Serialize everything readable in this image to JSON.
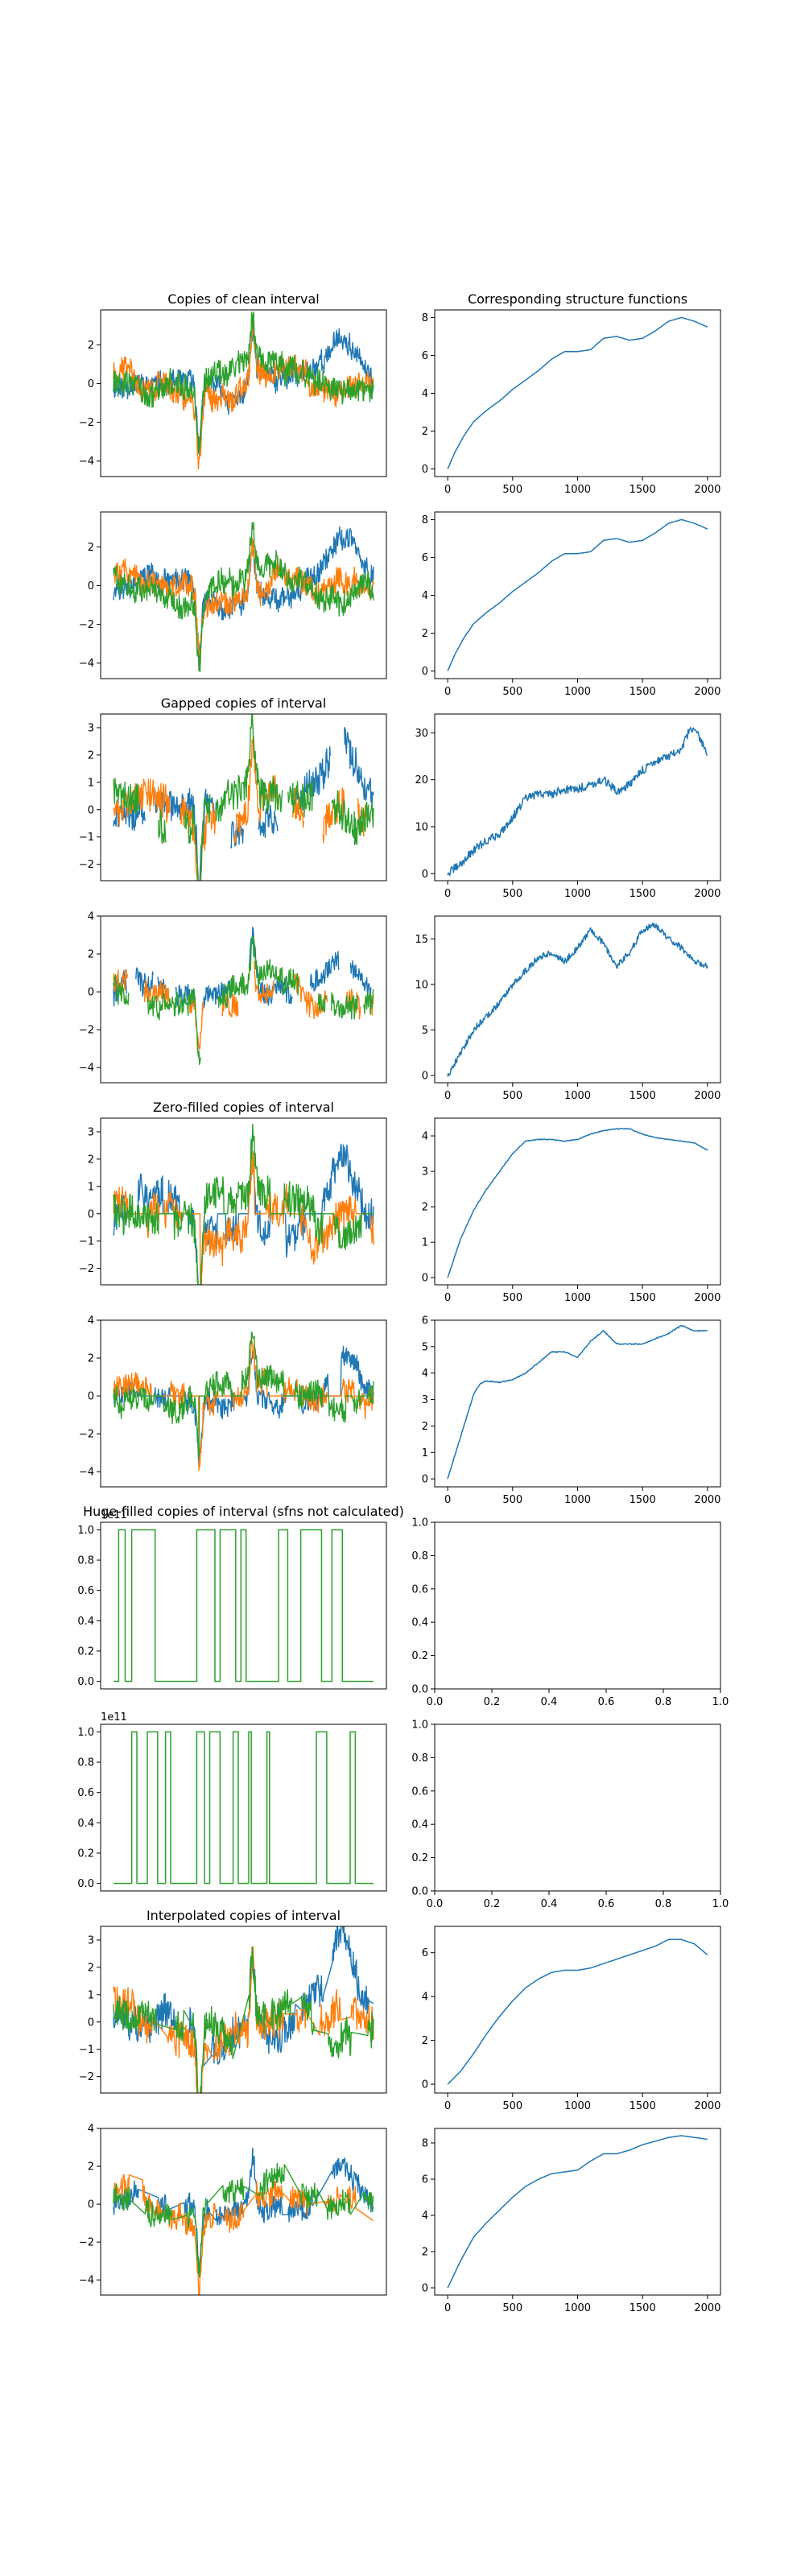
{
  "chart_data": {
    "type": "line",
    "colors": {
      "series_1": "#1f77b4",
      "series_2": "#ff7f0e",
      "series_3": "#2ca02c",
      "frame": "#000000"
    },
    "panels": [
      {
        "id": "clean-1",
        "row": 0,
        "col": 0,
        "title": "Copies of clean interval",
        "kind": "timeseries",
        "variant": "clean",
        "seed": 11,
        "ylim": [
          -4.8,
          3.8
        ],
        "yticks": [
          -4,
          -2,
          0,
          2
        ],
        "ytick_labels": [
          "−4",
          "−2",
          "0",
          "2"
        ]
      },
      {
        "id": "clean-sf-1",
        "row": 0,
        "col": 1,
        "title": "Corresponding structure functions",
        "kind": "sf",
        "seed": 101,
        "xlim": [
          -100,
          2100
        ],
        "ylim": [
          -0.4,
          8.4
        ],
        "xticks": [
          0,
          500,
          1000,
          1500,
          2000
        ],
        "xtick_labels": [
          "0",
          "500",
          "1000",
          "1500",
          "2000"
        ],
        "yticks": [
          0,
          2,
          4,
          6,
          8
        ],
        "ytick_labels": [
          "0",
          "2",
          "4",
          "6",
          "8"
        ],
        "curve": {
          "x": [
            0,
            50,
            120,
            200,
            300,
            400,
            500,
            600,
            700,
            800,
            900,
            1000,
            1100,
            1200,
            1300,
            1400,
            1500,
            1600,
            1700,
            1800,
            1900,
            2000
          ],
          "y": [
            0,
            0.8,
            1.7,
            2.5,
            3.1,
            3.6,
            4.2,
            4.7,
            5.2,
            5.8,
            6.2,
            6.2,
            6.3,
            6.9,
            7.0,
            6.8,
            6.9,
            7.3,
            7.8,
            8.0,
            7.8,
            7.5
          ]
        },
        "noise": 0
      },
      {
        "id": "clean-2",
        "row": 1,
        "col": 0,
        "title": "",
        "kind": "timeseries",
        "variant": "clean",
        "seed": 12,
        "ylim": [
          -4.8,
          3.8
        ],
        "yticks": [
          -4,
          -2,
          0,
          2
        ],
        "ytick_labels": [
          "−4",
          "−2",
          "0",
          "2"
        ]
      },
      {
        "id": "clean-sf-2",
        "row": 1,
        "col": 1,
        "title": "",
        "kind": "sf",
        "seed": 102,
        "xlim": [
          -100,
          2100
        ],
        "ylim": [
          -0.4,
          8.4
        ],
        "xticks": [
          0,
          500,
          1000,
          1500,
          2000
        ],
        "xtick_labels": [
          "0",
          "500",
          "1000",
          "1500",
          "2000"
        ],
        "yticks": [
          0,
          2,
          4,
          6,
          8
        ],
        "ytick_labels": [
          "0",
          "2",
          "4",
          "6",
          "8"
        ],
        "curve": {
          "x": [
            0,
            50,
            120,
            200,
            300,
            400,
            500,
            600,
            700,
            800,
            900,
            1000,
            1100,
            1200,
            1300,
            1400,
            1500,
            1600,
            1700,
            1800,
            1900,
            2000
          ],
          "y": [
            0,
            0.8,
            1.7,
            2.5,
            3.1,
            3.6,
            4.2,
            4.7,
            5.2,
            5.8,
            6.2,
            6.2,
            6.3,
            6.9,
            7.0,
            6.8,
            6.9,
            7.3,
            7.8,
            8.0,
            7.8,
            7.5
          ]
        },
        "noise": 0
      },
      {
        "id": "gapped-1",
        "row": 2,
        "col": 0,
        "title": "Gapped copies of interval",
        "kind": "timeseries",
        "variant": "gapped",
        "seed": 21,
        "ylim": [
          -2.6,
          3.5
        ],
        "yticks": [
          -2,
          -1,
          0,
          1,
          2,
          3
        ],
        "ytick_labels": [
          "−2",
          "−1",
          "0",
          "1",
          "2",
          "3"
        ]
      },
      {
        "id": "gapped-sf-1",
        "row": 2,
        "col": 1,
        "title": "",
        "kind": "sf",
        "seed": 201,
        "xlim": [
          -100,
          2100
        ],
        "ylim": [
          -1.5,
          34
        ],
        "xticks": [
          0,
          500,
          1000,
          1500,
          2000
        ],
        "xtick_labels": [
          "0",
          "500",
          "1000",
          "1500",
          "2000"
        ],
        "yticks": [
          0,
          10,
          20,
          30
        ],
        "ytick_labels": [
          "0",
          "10",
          "20",
          "30"
        ],
        "curve": {
          "x": [
            0,
            100,
            200,
            300,
            400,
            500,
            600,
            700,
            800,
            900,
            1000,
            1100,
            1200,
            1300,
            1400,
            1500,
            1600,
            1700,
            1800,
            1850,
            1900,
            1950,
            2000
          ],
          "y": [
            0,
            2,
            5,
            7,
            8.5,
            12,
            16,
            17,
            17,
            18,
            18,
            19,
            20,
            17.5,
            19,
            22,
            24,
            25,
            26,
            30,
            31,
            28,
            26
          ]
        },
        "noise": 0.9
      },
      {
        "id": "gapped-2",
        "row": 3,
        "col": 0,
        "title": "",
        "kind": "timeseries",
        "variant": "gapped",
        "seed": 22,
        "ylim": [
          -4.8,
          4
        ],
        "yticks": [
          -4,
          -2,
          0,
          2,
          4
        ],
        "ytick_labels": [
          "−4",
          "−2",
          "0",
          "2",
          "4"
        ]
      },
      {
        "id": "gapped-sf-2",
        "row": 3,
        "col": 1,
        "title": "",
        "kind": "sf",
        "seed": 202,
        "xlim": [
          -100,
          2100
        ],
        "ylim": [
          -0.8,
          17.5
        ],
        "xticks": [
          0,
          500,
          1000,
          1500,
          2000
        ],
        "xtick_labels": [
          "0",
          "500",
          "1000",
          "1500",
          "2000"
        ],
        "yticks": [
          0,
          5,
          10,
          15
        ],
        "ytick_labels": [
          "0",
          "5",
          "10",
          "15"
        ],
        "curve": {
          "x": [
            0,
            100,
            200,
            300,
            400,
            500,
            600,
            700,
            800,
            900,
            1000,
            1100,
            1200,
            1300,
            1400,
            1500,
            1600,
            1700,
            1800,
            1900,
            2000
          ],
          "y": [
            0,
            2.5,
            5,
            6.5,
            8,
            10,
            11.5,
            13,
            13.5,
            12.5,
            14,
            16,
            14.5,
            12,
            13.5,
            16,
            16.5,
            15,
            14,
            12.5,
            12
          ]
        },
        "noise": 0.35
      },
      {
        "id": "zero-1",
        "row": 4,
        "col": 0,
        "title": "Zero-filled copies of interval",
        "kind": "timeseries",
        "variant": "zero",
        "seed": 31,
        "ylim": [
          -2.6,
          3.5
        ],
        "yticks": [
          -2,
          -1,
          0,
          1,
          2,
          3
        ],
        "ytick_labels": [
          "−2",
          "−1",
          "0",
          "1",
          "2",
          "3"
        ]
      },
      {
        "id": "zero-sf-1",
        "row": 4,
        "col": 1,
        "title": "",
        "kind": "sf",
        "seed": 301,
        "xlim": [
          -100,
          2100
        ],
        "ylim": [
          -0.2,
          4.5
        ],
        "xticks": [
          0,
          500,
          1000,
          1500,
          2000
        ],
        "xtick_labels": [
          "0",
          "500",
          "1000",
          "1500",
          "2000"
        ],
        "yticks": [
          0,
          1,
          2,
          3,
          4
        ],
        "ytick_labels": [
          "0",
          "1",
          "2",
          "3",
          "4"
        ],
        "curve": {
          "x": [
            0,
            100,
            200,
            300,
            400,
            500,
            600,
            700,
            800,
            900,
            1000,
            1100,
            1200,
            1300,
            1400,
            1500,
            1600,
            1700,
            1800,
            1900,
            2000
          ],
          "y": [
            0,
            1.1,
            1.9,
            2.5,
            3.0,
            3.5,
            3.85,
            3.9,
            3.9,
            3.85,
            3.9,
            4.05,
            4.15,
            4.2,
            4.2,
            4.05,
            3.95,
            3.9,
            3.85,
            3.8,
            3.6
          ]
        },
        "noise": 0.01
      },
      {
        "id": "zero-2",
        "row": 5,
        "col": 0,
        "title": "",
        "kind": "timeseries",
        "variant": "zero",
        "seed": 32,
        "ylim": [
          -4.8,
          4
        ],
        "yticks": [
          -4,
          -2,
          0,
          2,
          4
        ],
        "ytick_labels": [
          "−4",
          "−2",
          "0",
          "2",
          "4"
        ]
      },
      {
        "id": "zero-sf-2",
        "row": 5,
        "col": 1,
        "title": "",
        "kind": "sf",
        "seed": 302,
        "xlim": [
          -100,
          2100
        ],
        "ylim": [
          -0.3,
          6
        ],
        "xticks": [
          0,
          500,
          1000,
          1500,
          2000
        ],
        "xtick_labels": [
          "0",
          "500",
          "1000",
          "1500",
          "2000"
        ],
        "yticks": [
          0,
          1,
          2,
          3,
          4,
          5,
          6
        ],
        "ytick_labels": [
          "0",
          "1",
          "2",
          "3",
          "4",
          "5",
          "6"
        ],
        "curve": {
          "x": [
            0,
            100,
            200,
            250,
            300,
            400,
            500,
            600,
            700,
            800,
            900,
            1000,
            1100,
            1200,
            1300,
            1400,
            1500,
            1600,
            1700,
            1800,
            1900,
            2000
          ],
          "y": [
            0,
            1.6,
            3.2,
            3.6,
            3.7,
            3.65,
            3.75,
            4.0,
            4.4,
            4.8,
            4.8,
            4.6,
            5.2,
            5.6,
            5.1,
            5.1,
            5.1,
            5.3,
            5.5,
            5.8,
            5.6,
            5.6
          ]
        },
        "noise": 0.02
      },
      {
        "id": "huge-1",
        "row": 6,
        "col": 0,
        "title": "Huge-filled copies of interval (sfns not calculated)",
        "kind": "binary",
        "seed": 41,
        "ylim": [
          -0.05,
          1.05
        ],
        "yticks": [
          0,
          0.2,
          0.4,
          0.6,
          0.8,
          1.0
        ],
        "ytick_labels": [
          "0.0",
          "0.2",
          "0.4",
          "0.6",
          "0.8",
          "1.0"
        ],
        "offset_text": "1e11",
        "intervals": [
          [
            0.02,
            0.045
          ],
          [
            0.07,
            0.16
          ],
          [
            0.32,
            0.39
          ],
          [
            0.41,
            0.47
          ],
          [
            0.49,
            0.51
          ],
          [
            0.635,
            0.67
          ],
          [
            0.72,
            0.8
          ],
          [
            0.84,
            0.88
          ]
        ]
      },
      {
        "id": "huge-empty-1",
        "row": 6,
        "col": 1,
        "title": "",
        "kind": "empty",
        "xlim": [
          0,
          1
        ],
        "ylim": [
          0,
          1
        ],
        "xticks": [
          0,
          0.2,
          0.4,
          0.6,
          0.8,
          1.0
        ],
        "xtick_labels": [
          "0.0",
          "0.2",
          "0.4",
          "0.6",
          "0.8",
          "1.0"
        ],
        "yticks": [
          0,
          0.2,
          0.4,
          0.6,
          0.8,
          1.0
        ],
        "ytick_labels": [
          "0.0",
          "0.2",
          "0.4",
          "0.6",
          "0.8",
          "1.0"
        ]
      },
      {
        "id": "huge-2",
        "row": 7,
        "col": 0,
        "title": "",
        "kind": "binary",
        "seed": 42,
        "ylim": [
          -0.05,
          1.05
        ],
        "yticks": [
          0,
          0.2,
          0.4,
          0.6,
          0.8,
          1.0
        ],
        "ytick_labels": [
          "0.0",
          "0.2",
          "0.4",
          "0.6",
          "0.8",
          "1.0"
        ],
        "offset_text": "1e11",
        "intervals": [
          [
            0.07,
            0.09
          ],
          [
            0.13,
            0.17
          ],
          [
            0.2,
            0.22
          ],
          [
            0.32,
            0.35
          ],
          [
            0.37,
            0.41
          ],
          [
            0.46,
            0.48
          ],
          [
            0.52,
            0.53
          ],
          [
            0.59,
            0.6
          ],
          [
            0.78,
            0.82
          ],
          [
            0.91,
            0.93
          ]
        ]
      },
      {
        "id": "huge-empty-2",
        "row": 7,
        "col": 1,
        "title": "",
        "kind": "empty",
        "xlim": [
          0,
          1
        ],
        "ylim": [
          0,
          1
        ],
        "xticks": [
          0,
          0.2,
          0.4,
          0.6,
          0.8,
          1.0
        ],
        "xtick_labels": [
          "0.0",
          "0.2",
          "0.4",
          "0.6",
          "0.8",
          "1.0"
        ],
        "yticks": [
          0,
          0.2,
          0.4,
          0.6,
          0.8,
          1.0
        ],
        "ytick_labels": [
          "0.0",
          "0.2",
          "0.4",
          "0.6",
          "0.8",
          "1.0"
        ]
      },
      {
        "id": "interp-1",
        "row": 8,
        "col": 0,
        "title": "Interpolated copies of interval",
        "kind": "timeseries",
        "variant": "interp",
        "seed": 51,
        "ylim": [
          -2.6,
          3.5
        ],
        "yticks": [
          -2,
          -1,
          0,
          1,
          2,
          3
        ],
        "ytick_labels": [
          "−2",
          "−1",
          "0",
          "1",
          "2",
          "3"
        ]
      },
      {
        "id": "interp-sf-1",
        "row": 8,
        "col": 1,
        "title": "",
        "kind": "sf",
        "seed": 501,
        "xlim": [
          -100,
          2100
        ],
        "ylim": [
          -0.4,
          7.2
        ],
        "xticks": [
          0,
          500,
          1000,
          1500,
          2000
        ],
        "xtick_labels": [
          "0",
          "500",
          "1000",
          "1500",
          "2000"
        ],
        "yticks": [
          0,
          2,
          4,
          6
        ],
        "ytick_labels": [
          "0",
          "2",
          "4",
          "6"
        ],
        "curve": {
          "x": [
            0,
            100,
            200,
            300,
            400,
            500,
            600,
            700,
            800,
            900,
            1000,
            1100,
            1200,
            1300,
            1400,
            1500,
            1600,
            1700,
            1800,
            1900,
            2000
          ],
          "y": [
            0,
            0.6,
            1.4,
            2.3,
            3.1,
            3.8,
            4.4,
            4.8,
            5.1,
            5.2,
            5.2,
            5.3,
            5.5,
            5.7,
            5.9,
            6.1,
            6.3,
            6.6,
            6.6,
            6.4,
            5.9
          ]
        },
        "noise": 0
      },
      {
        "id": "interp-2",
        "row": 9,
        "col": 0,
        "title": "",
        "kind": "timeseries",
        "variant": "interp",
        "seed": 52,
        "ylim": [
          -4.8,
          4
        ],
        "yticks": [
          -4,
          -2,
          0,
          2,
          4
        ],
        "ytick_labels": [
          "−4",
          "−2",
          "0",
          "2",
          "4"
        ]
      },
      {
        "id": "interp-sf-2",
        "row": 9,
        "col": 1,
        "title": "",
        "kind": "sf",
        "seed": 502,
        "xlim": [
          -100,
          2100
        ],
        "ylim": [
          -0.4,
          8.8
        ],
        "xticks": [
          0,
          500,
          1000,
          1500,
          2000
        ],
        "xtick_labels": [
          "0",
          "500",
          "1000",
          "1500",
          "2000"
        ],
        "yticks": [
          0,
          2,
          4,
          6,
          8
        ],
        "ytick_labels": [
          "0",
          "2",
          "4",
          "6",
          "8"
        ],
        "curve": {
          "x": [
            0,
            100,
            200,
            300,
            400,
            500,
            600,
            700,
            800,
            900,
            1000,
            1100,
            1200,
            1300,
            1400,
            1500,
            1600,
            1700,
            1800,
            1900,
            2000
          ],
          "y": [
            0,
            1.5,
            2.8,
            3.6,
            4.3,
            5.0,
            5.6,
            6.0,
            6.3,
            6.4,
            6.5,
            7.0,
            7.4,
            7.4,
            7.6,
            7.9,
            8.1,
            8.3,
            8.4,
            8.3,
            8.2
          ]
        },
        "noise": 0
      }
    ]
  }
}
